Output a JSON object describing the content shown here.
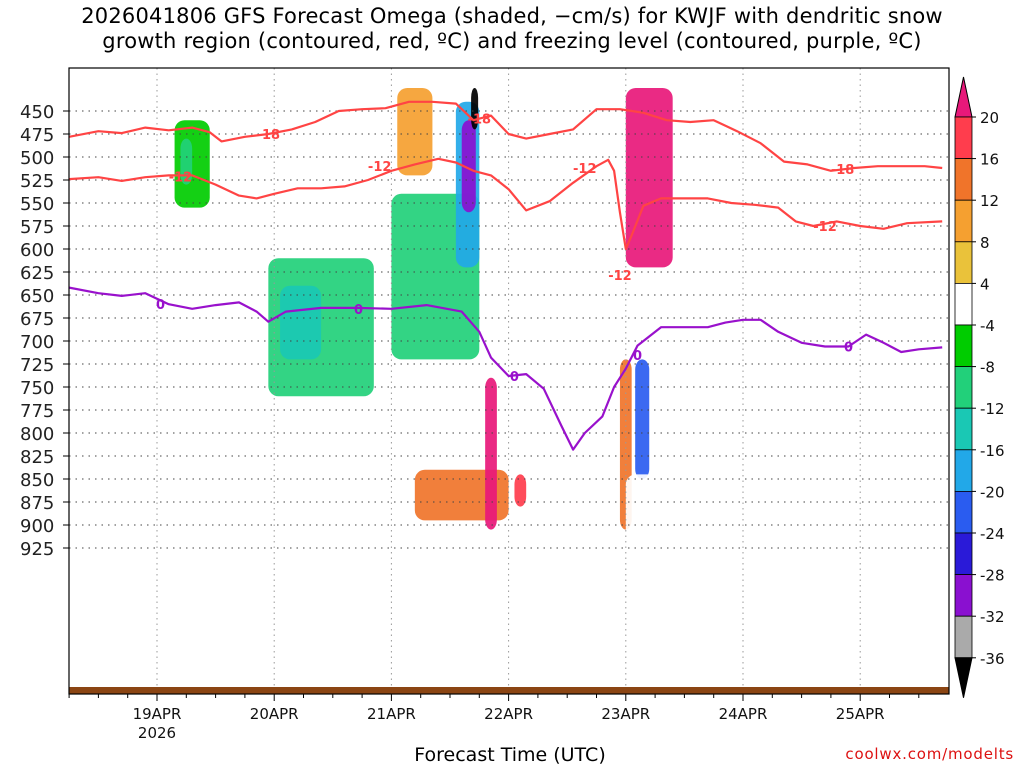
{
  "title_line1": "2026041806 GFS Forecast Omega (shaded, −cm/s) for KWJF with dendritic snow",
  "title_line2": "growth region (contoured, red, ºC) and freezing level (contoured, purple, ºC)",
  "credit": "coolwx.com/modelts",
  "colors": {
    "dendritic": "#ff4444",
    "freezing": "#9911cc",
    "ground": "#8b4513",
    "grid": "#444444"
  },
  "chart_data": {
    "type": "heatmap",
    "title": "2026041806 GFS Forecast Omega (shaded, −cm/s) for KWJF with dendritic snow growth region (contoured, red, ºC) and freezing level (contoured, purple, ºC)",
    "xlabel": "Forecast Time (UTC)",
    "ylabel": "Pressure (hPa)",
    "xlim": [
      -0.75,
      6.7
    ],
    "ylim": [
      925,
      420
    ],
    "yticks": [
      450,
      475,
      500,
      525,
      550,
      575,
      600,
      625,
      650,
      675,
      700,
      725,
      750,
      775,
      800,
      825,
      850,
      875,
      900,
      925
    ],
    "xticks": [
      {
        "day": 0,
        "label": "19APR",
        "sublabel": "2026"
      },
      {
        "day": 1,
        "label": "20APR",
        "sublabel": ""
      },
      {
        "day": 2,
        "label": "21APR",
        "sublabel": ""
      },
      {
        "day": 3,
        "label": "22APR",
        "sublabel": ""
      },
      {
        "day": 4,
        "label": "23APR",
        "sublabel": ""
      },
      {
        "day": 5,
        "label": "24APR",
        "sublabel": ""
      },
      {
        "day": 6,
        "label": "25APR",
        "sublabel": ""
      }
    ],
    "colorbar": {
      "levels": [
        20,
        16,
        12,
        8,
        4,
        -4,
        -8,
        -12,
        -16,
        -20,
        -24,
        -28,
        -32,
        -36
      ],
      "labels": [
        "20",
        "16",
        "12",
        "8",
        "4",
        "-4",
        "-8",
        "-12",
        "-16",
        "-20",
        "-24",
        "-28",
        "-32",
        "-36"
      ],
      "colors": [
        "#ff3d4d",
        "#f0742a",
        "#f5a030",
        "#eac23a",
        "#ffffff",
        "#00cc00",
        "#22d07a",
        "#1ac8b4",
        "#22a8e8",
        "#2a5cf0",
        "#2a1ad8",
        "#8a10d0",
        "#aaaaaa",
        "#000000"
      ],
      "top_color": "#e8187a",
      "bottom_color": "#000000"
    },
    "freezing_level": {
      "name": "freezing level 0C",
      "label": "0",
      "x": [
        -0.75,
        -0.5,
        -0.3,
        -0.1,
        0.1,
        0.3,
        0.5,
        0.7,
        0.85,
        0.95,
        1.1,
        1.4,
        1.7,
        2.0,
        2.3,
        2.6,
        2.75,
        2.85,
        3.0,
        3.15,
        3.3,
        3.45,
        3.55,
        3.65,
        3.8,
        3.9,
        4.0,
        4.1,
        4.3,
        4.5,
        4.7,
        4.85,
        5.0,
        5.15,
        5.3,
        5.5,
        5.7,
        5.9,
        6.05,
        6.2,
        6.35,
        6.5,
        6.7
      ],
      "y": [
        642,
        648,
        651,
        648,
        660,
        665,
        661,
        658,
        668,
        679,
        668,
        664,
        664,
        665,
        661,
        668,
        690,
        718,
        738,
        736,
        752,
        792,
        818,
        800,
        782,
        750,
        730,
        705,
        685,
        685,
        685,
        680,
        677,
        677,
        690,
        702,
        706,
        706,
        693,
        702,
        712,
        709,
        707
      ]
    },
    "dendritic_contours": [
      {
        "name": "-12C upper branch",
        "label": "-12",
        "x": [
          -0.75,
          -0.5,
          -0.3,
          -0.1,
          0.1,
          0.3,
          0.5,
          0.7,
          0.85,
          1.0,
          1.2,
          1.4,
          1.6,
          1.8,
          2.0,
          2.2,
          2.4,
          2.55,
          2.7,
          2.85,
          3.0,
          3.15,
          3.35,
          3.55,
          3.75,
          3.85,
          3.9,
          3.95,
          4.0,
          4.05,
          4.15,
          4.3,
          4.5,
          4.7,
          4.9,
          5.1,
          5.3,
          5.45,
          5.6,
          5.8,
          6.0,
          6.2,
          6.4,
          6.7
        ],
        "y": [
          524,
          522,
          526,
          522,
          520,
          520,
          530,
          542,
          545,
          540,
          534,
          534,
          532,
          525,
          515,
          508,
          502,
          506,
          515,
          520,
          535,
          558,
          548,
          528,
          510,
          503,
          515,
          560,
          600,
          585,
          553,
          545,
          545,
          545,
          550,
          552,
          555,
          570,
          575,
          570,
          575,
          578,
          572,
          570
        ]
      },
      {
        "name": "-18C contour",
        "label": "-18",
        "x": [
          -0.75,
          -0.5,
          -0.3,
          -0.1,
          0.1,
          0.3,
          0.45,
          0.55,
          0.75,
          0.95,
          1.15,
          1.35,
          1.55,
          1.75,
          1.95,
          2.15,
          2.35,
          2.55,
          2.7,
          2.85,
          3.0,
          3.15,
          3.35,
          3.55,
          3.75,
          3.95,
          4.15,
          4.35,
          4.55,
          4.75,
          4.95,
          5.15,
          5.35,
          5.55,
          5.75,
          5.95,
          6.15,
          6.35,
          6.55,
          6.7
        ],
        "y": [
          478,
          472,
          474,
          468,
          471,
          468,
          473,
          483,
          478,
          475,
          470,
          462,
          450,
          448,
          447,
          440,
          440,
          442,
          460,
          455,
          475,
          480,
          475,
          470,
          448,
          448,
          452,
          460,
          462,
          460,
          472,
          485,
          505,
          508,
          515,
          512,
          510,
          510,
          510,
          512
        ]
      }
    ],
    "omega_regions": [
      {
        "x": [
          -0.35,
          -0.25
        ],
        "p": [
          455,
          620
        ],
        "value": 4
      },
      {
        "x": [
          0.15,
          0.45
        ],
        "p": [
          460,
          555
        ],
        "value": -6
      },
      {
        "x": [
          0.2,
          0.3
        ],
        "p": [
          480,
          530
        ],
        "value": -10
      },
      {
        "x": [
          0.95,
          1.85
        ],
        "p": [
          610,
          760
        ],
        "value": -8
      },
      {
        "x": [
          1.05,
          1.4
        ],
        "p": [
          640,
          720
        ],
        "value": -12
      },
      {
        "x": [
          2.0,
          2.75
        ],
        "p": [
          540,
          720
        ],
        "value": -8
      },
      {
        "x": [
          2.55,
          2.75
        ],
        "p": [
          440,
          620
        ],
        "value": -18
      },
      {
        "x": [
          2.6,
          2.72
        ],
        "p": [
          460,
          560
        ],
        "value": -30
      },
      {
        "x": [
          2.68,
          2.74
        ],
        "p": [
          425,
          470
        ],
        "value": -36
      },
      {
        "x": [
          2.05,
          2.35
        ],
        "p": [
          425,
          520
        ],
        "value": 10
      },
      {
        "x": [
          4.0,
          4.4
        ],
        "p": [
          425,
          620
        ],
        "value": 22
      },
      {
        "x": [
          4.08,
          4.2
        ],
        "p": [
          720,
          850
        ],
        "value": -20
      },
      {
        "x": [
          1.5,
          3.6
        ],
        "p": [
          800,
          915
        ],
        "value": 8
      },
      {
        "x": [
          2.2,
          3.0
        ],
        "p": [
          840,
          895
        ],
        "value": 14
      },
      {
        "x": [
          2.8,
          2.9
        ],
        "p": [
          740,
          905
        ],
        "value": 22
      },
      {
        "x": [
          3.05,
          3.15
        ],
        "p": [
          845,
          880
        ],
        "value": 18
      },
      {
        "x": [
          3.95,
          4.05
        ],
        "p": [
          720,
          905
        ],
        "value": 16
      },
      {
        "x": [
          4.0,
          4.6
        ],
        "p": [
          845,
          915
        ],
        "value": 5
      }
    ]
  }
}
